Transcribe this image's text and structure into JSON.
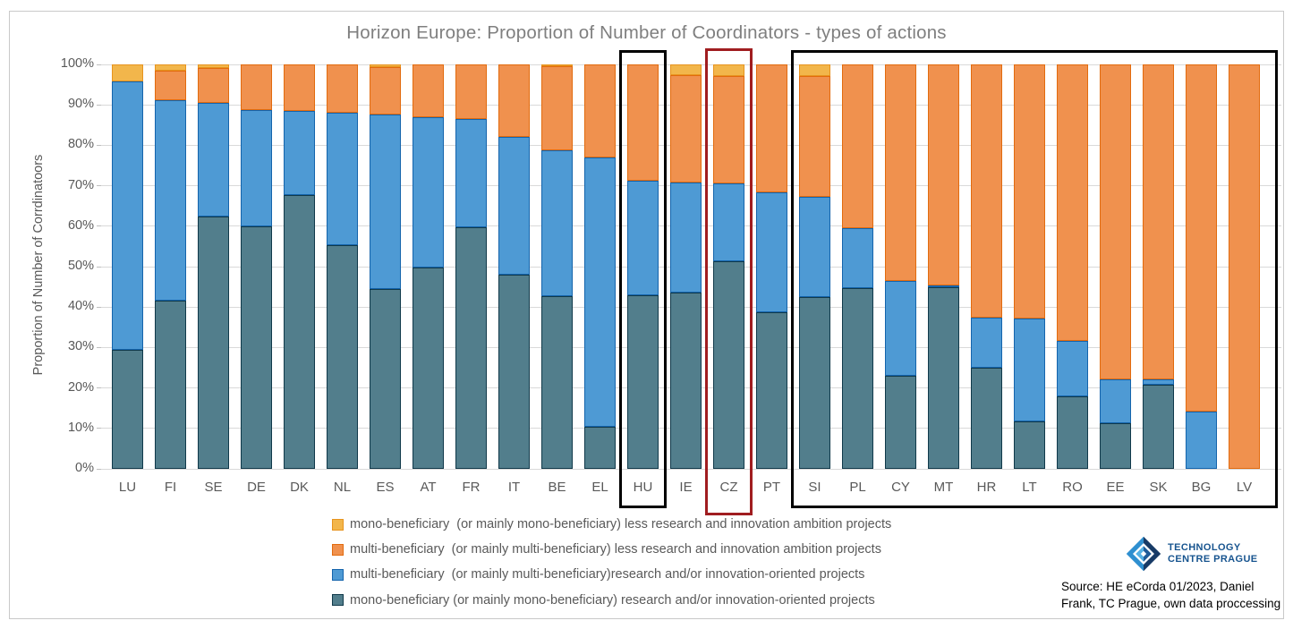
{
  "title": "Horizon Europe: Proportion of Number of Coordinators - types of actions",
  "y_axis": {
    "title": "Proportion of Number of Corrdinatoors",
    "tick_labels": [
      "0%",
      "10%",
      "20%",
      "30%",
      "40%",
      "50%",
      "60%",
      "70%",
      "80%",
      "90%",
      "100%"
    ]
  },
  "chart_data": {
    "type": "bar",
    "stacked": true,
    "unit": "percent",
    "ylim": [
      0,
      100
    ],
    "grid": true,
    "legend_position": "bottom-left",
    "categories": [
      "LU",
      "FI",
      "SE",
      "DE",
      "DK",
      "NL",
      "ES",
      "AT",
      "FR",
      "IT",
      "BE",
      "EL",
      "HU",
      "IE",
      "CZ",
      "PT",
      "SI",
      "PL",
      "CY",
      "MT",
      "HR",
      "LT",
      "RO",
      "EE",
      "SK",
      "BG",
      "LV"
    ],
    "series": [
      {
        "name": "mono-beneficiary  (or mainly mono-beneficiary) less research and innovation ambition projects",
        "fill": "#F2B64B",
        "border": "#E7941E",
        "values": [
          4.2,
          1.5,
          0.8,
          0,
          0,
          0,
          0.7,
          0,
          0,
          0,
          0.5,
          0,
          0,
          2.7,
          2.9,
          0,
          2.9,
          0,
          0,
          0,
          0,
          0,
          0,
          0,
          0,
          0,
          0
        ]
      },
      {
        "name": "multi-beneficiary  (or mainly multi-beneficiary) less research and innovation ambition projects",
        "fill": "#F0914E",
        "border": "#E26B0E",
        "values": [
          0,
          7.3,
          8.7,
          11.3,
          11.5,
          11.9,
          11.7,
          13.0,
          13.5,
          17.9,
          20.7,
          23.1,
          28.8,
          26.5,
          26.5,
          31.6,
          29.8,
          40.5,
          53.5,
          54.6,
          62.6,
          62.8,
          68.4,
          77.9,
          77.9,
          85.8,
          100
        ]
      },
      {
        "name": "multi-beneficiary  (or mainly multi-beneficiary)research and/or innovation-oriented projects",
        "fill": "#4E9AD4",
        "border": "#1464AC",
        "values": [
          66.4,
          49.6,
          28.1,
          28.7,
          20.8,
          32.8,
          43.1,
          37.2,
          26.8,
          34.1,
          36.1,
          66.5,
          28.3,
          27.2,
          19.3,
          29.7,
          24.8,
          14.8,
          23.5,
          0.4,
          12.4,
          25.5,
          13.7,
          10.8,
          1.3,
          14.2,
          0
        ]
      },
      {
        "name": "mono-beneficiary (or mainly mono-beneficiary) research and/or innovation-oriented projects",
        "fill": "#527E8C",
        "border": "#10394A",
        "values": [
          29.4,
          41.6,
          62.4,
          60.0,
          67.7,
          55.3,
          44.5,
          49.8,
          59.7,
          48.0,
          42.7,
          10.4,
          42.9,
          43.6,
          51.3,
          38.7,
          42.5,
          44.7,
          23.0,
          45.0,
          25.0,
          11.7,
          17.9,
          11.3,
          20.8,
          0,
          0
        ]
      }
    ],
    "stack_order_bottom_to_top": [
      3,
      2,
      1,
      0
    ]
  },
  "highlights": [
    {
      "from": "HU",
      "to": "HU",
      "color": "#000000"
    },
    {
      "from": "CZ",
      "to": "CZ",
      "color": "#A01D20"
    },
    {
      "from": "SI",
      "to": "LV",
      "color": "#000000"
    }
  ],
  "source_note": {
    "line1": "Source: HE eCorda 01/2023, Daniel",
    "line2": "Frank, TC Prague, own data proccessing"
  },
  "logo": {
    "line1": "TECHNOLOGY",
    "line2": "CENTRE PRAGUE",
    "color": "#17548F"
  }
}
